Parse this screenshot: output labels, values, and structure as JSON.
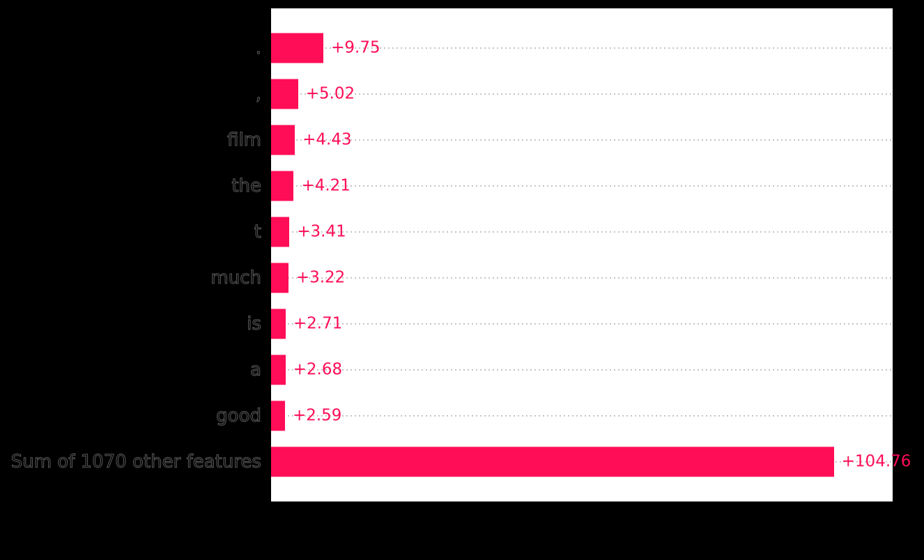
{
  "chart_data": {
    "type": "bar",
    "orientation": "horizontal",
    "title": "",
    "xlabel": "",
    "ylabel": "",
    "xlim": [
      0,
      115.7
    ],
    "grid": true,
    "gridline_style": "dotted",
    "legend": "none",
    "categories": [
      ".",
      ",",
      "film",
      "the",
      "t",
      "much",
      "is",
      "a",
      "good",
      "Sum of 1070 other features"
    ],
    "values": [
      9.75,
      5.02,
      4.43,
      4.21,
      3.41,
      3.22,
      2.71,
      2.68,
      2.59,
      104.76
    ],
    "value_labels": [
      "+9.75",
      "+5.02",
      "+4.43",
      "+4.21",
      "+3.41",
      "+3.22",
      "+2.71",
      "+2.68",
      "+2.59",
      "+104.76"
    ],
    "colors": {
      "bar": "#ff0d57",
      "value_label": "#ff0d57",
      "gridline": "#c9c9c9",
      "plot_background": "#ffffff",
      "page_background": "#000000",
      "tick_label_outline": "#5b5b5b"
    }
  }
}
